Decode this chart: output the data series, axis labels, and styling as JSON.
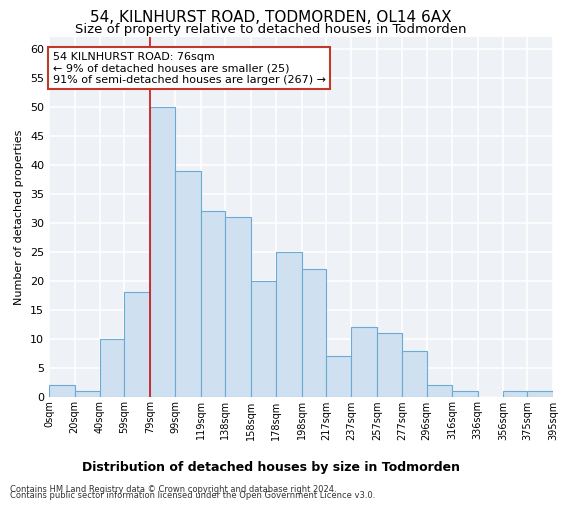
{
  "title": "54, KILNHURST ROAD, TODMORDEN, OL14 6AX",
  "subtitle": "Size of property relative to detached houses in Todmorden",
  "xlabel_bottom": "Distribution of detached houses by size in Todmorden",
  "ylabel": "Number of detached properties",
  "bar_values": [
    2,
    1,
    10,
    18,
    50,
    39,
    32,
    31,
    20,
    25,
    22,
    7,
    12,
    11,
    8,
    2,
    1,
    0,
    1,
    1
  ],
  "bin_edges": [
    0,
    20,
    40,
    59,
    79,
    99,
    119,
    138,
    158,
    178,
    198,
    217,
    237,
    257,
    277,
    296,
    316,
    336,
    356,
    375,
    395
  ],
  "x_labels": [
    "0sqm",
    "20sqm",
    "40sqm",
    "59sqm",
    "79sqm",
    "99sqm",
    "119sqm",
    "138sqm",
    "158sqm",
    "178sqm",
    "198sqm",
    "217sqm",
    "237sqm",
    "257sqm",
    "277sqm",
    "296sqm",
    "316sqm",
    "336sqm",
    "356sqm",
    "375sqm",
    "395sqm"
  ],
  "bar_color": "#cfe0f0",
  "bar_edge_color": "#6aaad4",
  "red_line_x": 79,
  "annotation_line1": "54 KILNHURST ROAD: 76sqm",
  "annotation_line2": "← 9% of detached houses are smaller (25)",
  "annotation_line3": "91% of semi-detached houses are larger (267) →",
  "annotation_box_color": "#ffffff",
  "annotation_box_edge": "#c0392b",
  "ylim": [
    0,
    62
  ],
  "yticks": [
    0,
    5,
    10,
    15,
    20,
    25,
    30,
    35,
    40,
    45,
    50,
    55,
    60
  ],
  "footer1": "Contains HM Land Registry data © Crown copyright and database right 2024.",
  "footer2": "Contains public sector information licensed under the Open Government Licence v3.0.",
  "fig_bg_color": "#ffffff",
  "plot_bg_color": "#eef2f7",
  "grid_color": "#ffffff",
  "title_fontsize": 11,
  "subtitle_fontsize": 9.5,
  "ylabel_fontsize": 8,
  "xtick_fontsize": 7,
  "ytick_fontsize": 8,
  "annotation_fontsize": 8,
  "xlabel_bottom_fontsize": 9,
  "footer_fontsize": 6
}
